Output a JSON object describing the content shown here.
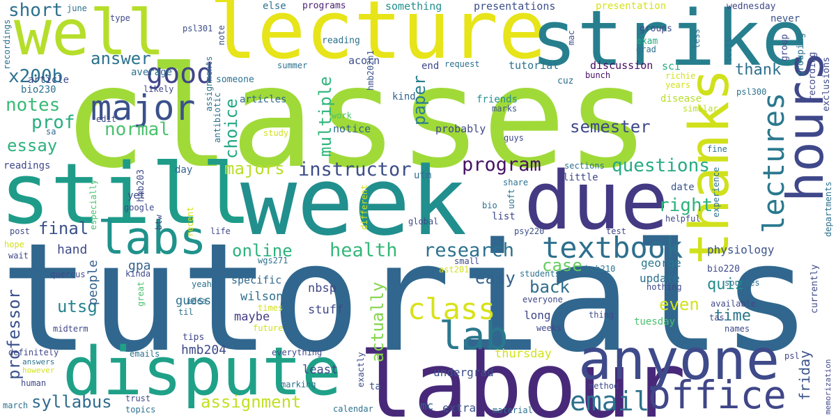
{
  "words": [
    {
      "text": "classes",
      "color": "#a0da39"
    },
    {
      "text": "tutorials",
      "color": "#31678e"
    },
    {
      "text": "week",
      "color": "#218f8d"
    },
    {
      "text": "labour",
      "color": "#482979"
    },
    {
      "text": "lecture",
      "color": "#e7e419"
    },
    {
      "text": "strike",
      "color": "#277f8e"
    },
    {
      "text": "still",
      "color": "#1e9c89"
    },
    {
      "text": "due",
      "color": "#443a83"
    },
    {
      "text": "dispute",
      "color": "#1fa188"
    },
    {
      "text": "anyone",
      "color": "#3e4a89"
    },
    {
      "text": "well",
      "color": "#b5de2b"
    },
    {
      "text": "hours",
      "color": "#3f4889"
    },
    {
      "text": "thanks",
      "color": "#d0e11c"
    },
    {
      "text": "office",
      "color": "#404688"
    },
    {
      "text": "labs",
      "color": "#20928c"
    },
    {
      "text": "lab",
      "color": "#2a788e"
    },
    {
      "text": "major",
      "color": "#3b518b"
    },
    {
      "text": "textbook",
      "color": "#2e6f8e"
    },
    {
      "text": "lectures",
      "color": "#2a788e"
    },
    {
      "text": "class",
      "color": "#d8e219"
    },
    {
      "text": "good",
      "color": "#404588"
    },
    {
      "text": "email",
      "color": "#2c718e"
    },
    {
      "text": "questions",
      "color": "#25ab82"
    },
    {
      "text": "research",
      "color": "#2c718e"
    },
    {
      "text": "health",
      "color": "#35b779"
    },
    {
      "text": "instructor",
      "color": "#3d4d8a"
    },
    {
      "text": "program",
      "color": "#471164"
    },
    {
      "text": "majors",
      "color": "#b8de29"
    },
    {
      "text": "semester",
      "color": "#3e4989"
    },
    {
      "text": "paper",
      "color": "#287d8e"
    },
    {
      "text": "choice",
      "color": "#22a884"
    },
    {
      "text": "multiple",
      "color": "#31b57b"
    },
    {
      "text": "answer",
      "color": "#2c728e"
    },
    {
      "text": "prof",
      "color": "#27ad81"
    },
    {
      "text": "notes",
      "color": "#3aba76"
    },
    {
      "text": "essay",
      "color": "#2db27d"
    },
    {
      "text": "normal",
      "color": "#4ac16d"
    },
    {
      "text": "x200b",
      "color": "#2c728e"
    },
    {
      "text": "short",
      "color": "#2c718e"
    },
    {
      "text": "final",
      "color": "#3b518b"
    },
    {
      "text": "online",
      "color": "#2db27d"
    },
    {
      "text": "syllabus",
      "color": "#2f6c8e"
    },
    {
      "text": "assignment",
      "color": "#c2df23"
    },
    {
      "text": "professor",
      "color": "#3b528b"
    },
    {
      "text": "utsg",
      "color": "#26828e"
    },
    {
      "text": "hmb204",
      "color": "#3e4989"
    },
    {
      "text": "quiz",
      "color": "#228c8d"
    },
    {
      "text": "right",
      "color": "#2db27d"
    },
    {
      "text": "case",
      "color": "#65cb5e"
    },
    {
      "text": "back",
      "color": "#2f6c8e"
    },
    {
      "text": "easy",
      "color": "#33628d"
    },
    {
      "text": "even",
      "color": "#d2e21b"
    },
    {
      "text": "time",
      "color": "#2b758e"
    },
    {
      "text": "thank",
      "color": "#2d708e"
    },
    {
      "text": "actually",
      "color": "#84d44b"
    },
    {
      "text": "friday",
      "color": "#3a538b"
    },
    {
      "text": "tuesday",
      "color": "#4ac16d"
    },
    {
      "text": "thursday",
      "color": "#d2e21b"
    },
    {
      "text": "hand",
      "color": "#3e4a89"
    },
    {
      "text": "gpa",
      "color": "#33628d"
    },
    {
      "text": "guess",
      "color": "#2c718e"
    },
    {
      "text": "people",
      "color": "#33638d"
    },
    {
      "text": "maybe",
      "color": "#443b84"
    },
    {
      "text": "nbsp",
      "color": "#3f4788"
    },
    {
      "text": "stuff",
      "color": "#3f4889"
    },
    {
      "text": "wilson",
      "color": "#2e6f8e"
    },
    {
      "text": "specific",
      "color": "#31678e"
    },
    {
      "text": "george",
      "color": "#2a788e"
    },
    {
      "text": "update",
      "color": "#2d708e"
    },
    {
      "text": "long",
      "color": "#3f4889"
    },
    {
      "text": "undergrad",
      "color": "#3d4d8a"
    },
    {
      "text": "least",
      "color": "#3f4788"
    },
    {
      "text": "mc",
      "color": "#33628d"
    },
    {
      "text": "extra",
      "color": "#3b528b"
    },
    {
      "text": "physiology",
      "color": "#3b528b"
    },
    {
      "text": "average",
      "color": "#2d708e"
    },
    {
      "text": "article",
      "color": "#3e4a89"
    },
    {
      "text": "articles",
      "color": "#31678e"
    },
    {
      "text": "notice",
      "color": "#31678e"
    },
    {
      "text": "probably",
      "color": "#3f4788"
    },
    {
      "text": "discussion",
      "color": "#460b5e"
    },
    {
      "text": "tutorial",
      "color": "#2c718e"
    },
    {
      "text": "acorn",
      "color": "#3c4f8a"
    },
    {
      "text": "presentations",
      "color": "#3c4f8a"
    },
    {
      "text": "something",
      "color": "#218f8d"
    },
    {
      "text": "else",
      "color": "#2d708e"
    },
    {
      "text": "presentation",
      "color": "#d5e21a"
    },
    {
      "text": "wednesday",
      "color": "#3f4788"
    },
    {
      "text": "never",
      "color": "#3b528b"
    },
    {
      "text": "groups",
      "color": "#3f4788"
    },
    {
      "text": "exam",
      "color": "#25ac82"
    },
    {
      "text": "grad",
      "color": "#2e6f8e"
    },
    {
      "text": "sci",
      "color": "#27ad81"
    },
    {
      "text": "richie",
      "color": "#d2e21b"
    },
    {
      "text": "years",
      "color": "#d2e21b"
    },
    {
      "text": "disease",
      "color": "#b8de29"
    },
    {
      "text": "similar",
      "color": "#b8de29"
    },
    {
      "text": "psl300",
      "color": "#2c728e"
    },
    {
      "text": "cuz",
      "color": "#2e6f8e"
    },
    {
      "text": "bunch",
      "color": "#471164"
    },
    {
      "text": "kind",
      "color": "#33638d"
    },
    {
      "text": "friends",
      "color": "#218f8d"
    },
    {
      "text": "marks",
      "color": "#3a538b"
    },
    {
      "text": "guys",
      "color": "#3f4889"
    },
    {
      "text": "end",
      "color": "#3f4889"
    },
    {
      "text": "request",
      "color": "#2c718e"
    },
    {
      "text": "june",
      "color": "#2c718e"
    },
    {
      "text": "type",
      "color": "#3f4889"
    },
    {
      "text": "psl301",
      "color": "#3c4f8a"
    },
    {
      "text": "note",
      "color": "#3c4f8a"
    },
    {
      "text": "mac",
      "color": "#3b528b"
    },
    {
      "text": "hmb202h1",
      "color": "#3b528b"
    },
    {
      "text": "reading",
      "color": "#2c718e"
    },
    {
      "text": "programs",
      "color": "#481f70"
    },
    {
      "text": "summer",
      "color": "#2c718e"
    },
    {
      "text": "someone",
      "color": "#2c718e"
    },
    {
      "text": "bio230",
      "color": "#2c718e"
    },
    {
      "text": "likely",
      "color": "#3f4889"
    },
    {
      "text": "edit",
      "color": "#3e4989"
    },
    {
      "text": "work",
      "color": "#4ac16d"
    },
    {
      "text": "study",
      "color": "#d2e21b"
    },
    {
      "text": "sa",
      "color": "#31678e"
    },
    {
      "text": "readings",
      "color": "#3f4889"
    },
    {
      "text": "day",
      "color": "#33638d"
    },
    {
      "text": "yet",
      "color": "#3e4989"
    },
    {
      "text": "google",
      "color": "#3e4989"
    },
    {
      "text": "utm",
      "color": "#2e6f8e"
    },
    {
      "text": "share",
      "color": "#2c718e"
    },
    {
      "text": "little",
      "color": "#3f4788"
    },
    {
      "text": "sections",
      "color": "#2c718e"
    },
    {
      "text": "date",
      "color": "#3b528b"
    },
    {
      "text": "bio",
      "color": "#2c718e"
    },
    {
      "text": "uoft",
      "color": "#2c718e"
    },
    {
      "text": "list",
      "color": "#3f4889"
    },
    {
      "text": "global",
      "color": "#3e4989"
    },
    {
      "text": "psy220",
      "color": "#3c4f8a"
    },
    {
      "text": "test",
      "color": "#3f4788"
    },
    {
      "text": "helpful",
      "color": "#3f4788"
    },
    {
      "text": "fine",
      "color": "#2c718e"
    },
    {
      "text": "post",
      "color": "#3f4889"
    },
    {
      "text": "life",
      "color": "#3f4889"
    },
    {
      "text": "hope",
      "color": "#d2e21b"
    },
    {
      "text": "wait",
      "color": "#3f4889"
    },
    {
      "text": "small",
      "color": "#3e4989"
    },
    {
      "text": "wgs271",
      "color": "#2c718e"
    },
    {
      "text": "students",
      "color": "#2c718e"
    },
    {
      "text": "ast201",
      "color": "#d2e21b"
    },
    {
      "text": "bch210",
      "color": "#2c718e"
    },
    {
      "text": "bio220",
      "color": "#3e4a89"
    },
    {
      "text": "sources",
      "color": "#2c718e"
    },
    {
      "text": "nothing",
      "color": "#3f4788"
    },
    {
      "text": "everyone",
      "color": "#3f4788"
    },
    {
      "text": "available",
      "color": "#3f4788"
    },
    {
      "text": "thing",
      "color": "#3e4a89"
    },
    {
      "text": "tas",
      "color": "#3f4889"
    },
    {
      "text": "names",
      "color": "#3f4889"
    },
    {
      "text": "quercus",
      "color": "#3f4889"
    },
    {
      "text": "kinda",
      "color": "#3f4889"
    },
    {
      "text": "yeah",
      "color": "#2c718e"
    },
    {
      "text": "great",
      "color": "#4ac16d"
    },
    {
      "text": "idea",
      "color": "#2c718e"
    },
    {
      "text": "til",
      "color": "#2c718e"
    },
    {
      "text": "times",
      "color": "#d2e21b"
    },
    {
      "text": "future",
      "color": "#d2e21b"
    },
    {
      "text": "weeks",
      "color": "#3f4889"
    },
    {
      "text": "midterm",
      "color": "#3f4889"
    },
    {
      "text": "tips",
      "color": "#3f4889"
    },
    {
      "text": "emails",
      "color": "#2c718e"
    },
    {
      "text": "everything",
      "color": "#3f4889"
    },
    {
      "text": "exactly",
      "color": "#3e4a89"
    },
    {
      "text": "marking",
      "color": "#2c718e"
    },
    {
      "text": "ta",
      "color": "#3b528b"
    },
    {
      "text": "method",
      "color": "#3e4989"
    },
    {
      "text": "material",
      "color": "#2c718e"
    },
    {
      "text": "calendar",
      "color": "#2c718e"
    },
    {
      "text": "definitely",
      "color": "#3f4889"
    },
    {
      "text": "human",
      "color": "#3f4889"
    },
    {
      "text": "answers",
      "color": "#2c718e"
    },
    {
      "text": "however",
      "color": "#d2e21b"
    },
    {
      "text": "trust",
      "color": "#3f4889"
    },
    {
      "text": "topics",
      "color": "#2c718e"
    },
    {
      "text": "march",
      "color": "#2c718e"
    },
    {
      "text": "psl",
      "color": "#3f4889"
    },
    {
      "text": "recordings",
      "color": "#2c718e"
    },
    {
      "text": "assignments",
      "color": "#2c718e"
    },
    {
      "text": "antibiotic",
      "color": "#2c718e"
    },
    {
      "text": "hmb203",
      "color": "#3e4989"
    },
    {
      "text": "especially",
      "color": "#4ac16d"
    },
    {
      "text": "recent",
      "color": "#d2e21b"
    },
    {
      "text": "btw",
      "color": "#3e4a89"
    },
    {
      "text": "different",
      "color": "#d2e21b"
    },
    {
      "text": "tests",
      "color": "#2c718e"
    },
    {
      "text": "less",
      "color": "#2c718e"
    },
    {
      "text": "group",
      "color": "#3e4989"
    },
    {
      "text": "grouping",
      "color": "#2c718e"
    },
    {
      "text": "recording",
      "color": "#3f4788"
    },
    {
      "text": "exclusions",
      "color": "#3e4989"
    },
    {
      "text": "experience",
      "color": "#2c718e"
    },
    {
      "text": "departments",
      "color": "#2c718e"
    },
    {
      "text": "currently",
      "color": "#3e4a89"
    },
    {
      "text": "memorization",
      "color": "#3f4889"
    }
  ]
}
